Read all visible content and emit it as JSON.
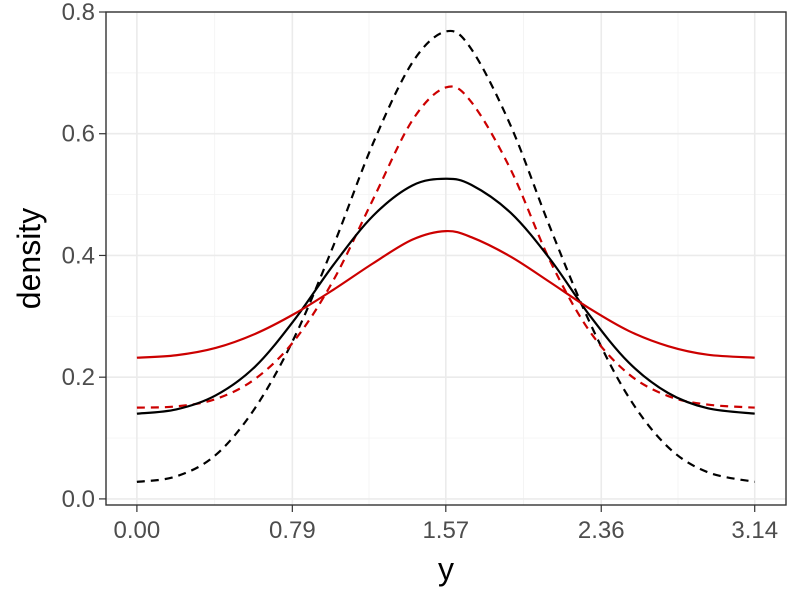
{
  "chart_data": {
    "type": "line",
    "title": "",
    "xlabel": "y",
    "ylabel": "density",
    "xlim": [
      -0.157,
      3.299
    ],
    "ylim": [
      -0.01,
      0.8
    ],
    "x_ticks": [
      0.0,
      0.79,
      1.57,
      2.36,
      3.14
    ],
    "x_tick_labels": [
      "0.00",
      "0.79",
      "1.57",
      "2.36",
      "3.14"
    ],
    "y_ticks": [
      0.0,
      0.2,
      0.4,
      0.6,
      0.8
    ],
    "y_tick_labels": [
      "0.0",
      "0.2",
      "0.4",
      "0.6",
      "0.8"
    ],
    "grid": true,
    "legend": "none",
    "series": [
      {
        "color": "#000000",
        "dash": "dashed",
        "x": [
          0.0,
          0.2,
          0.4,
          0.6,
          0.8,
          1.0,
          1.2,
          1.4,
          1.57,
          1.7,
          1.9,
          2.1,
          2.3,
          2.5,
          2.7,
          2.9,
          3.14
        ],
        "y": [
          0.028,
          0.037,
          0.072,
          0.149,
          0.265,
          0.417,
          0.584,
          0.717,
          0.768,
          0.739,
          0.613,
          0.446,
          0.291,
          0.167,
          0.085,
          0.044,
          0.028
        ]
      },
      {
        "color": "#cc0000",
        "dash": "dashed",
        "x": [
          0.0,
          0.2,
          0.4,
          0.6,
          0.8,
          1.0,
          1.2,
          1.4,
          1.57,
          1.7,
          1.9,
          2.1,
          2.3,
          2.5,
          2.7,
          2.9,
          3.14
        ],
        "y": [
          0.15,
          0.152,
          0.164,
          0.197,
          0.26,
          0.36,
          0.492,
          0.622,
          0.676,
          0.652,
          0.541,
          0.391,
          0.276,
          0.205,
          0.169,
          0.155,
          0.15
        ]
      },
      {
        "color": "#000000",
        "dash": "solid",
        "x": [
          0.0,
          0.2,
          0.4,
          0.6,
          0.8,
          1.0,
          1.2,
          1.4,
          1.57,
          1.7,
          1.9,
          2.1,
          2.3,
          2.5,
          2.7,
          2.9,
          3.14
        ],
        "y": [
          0.14,
          0.147,
          0.17,
          0.217,
          0.294,
          0.385,
          0.465,
          0.515,
          0.526,
          0.516,
          0.47,
          0.394,
          0.302,
          0.224,
          0.174,
          0.149,
          0.14
        ]
      },
      {
        "color": "#cc0000",
        "dash": "solid",
        "x": [
          0.0,
          0.2,
          0.4,
          0.6,
          0.8,
          1.0,
          1.2,
          1.4,
          1.57,
          1.7,
          1.9,
          2.1,
          2.3,
          2.5,
          2.7,
          2.9,
          3.14
        ],
        "y": [
          0.232,
          0.236,
          0.248,
          0.271,
          0.304,
          0.344,
          0.387,
          0.426,
          0.44,
          0.43,
          0.398,
          0.356,
          0.313,
          0.276,
          0.251,
          0.237,
          0.232
        ]
      }
    ]
  }
}
